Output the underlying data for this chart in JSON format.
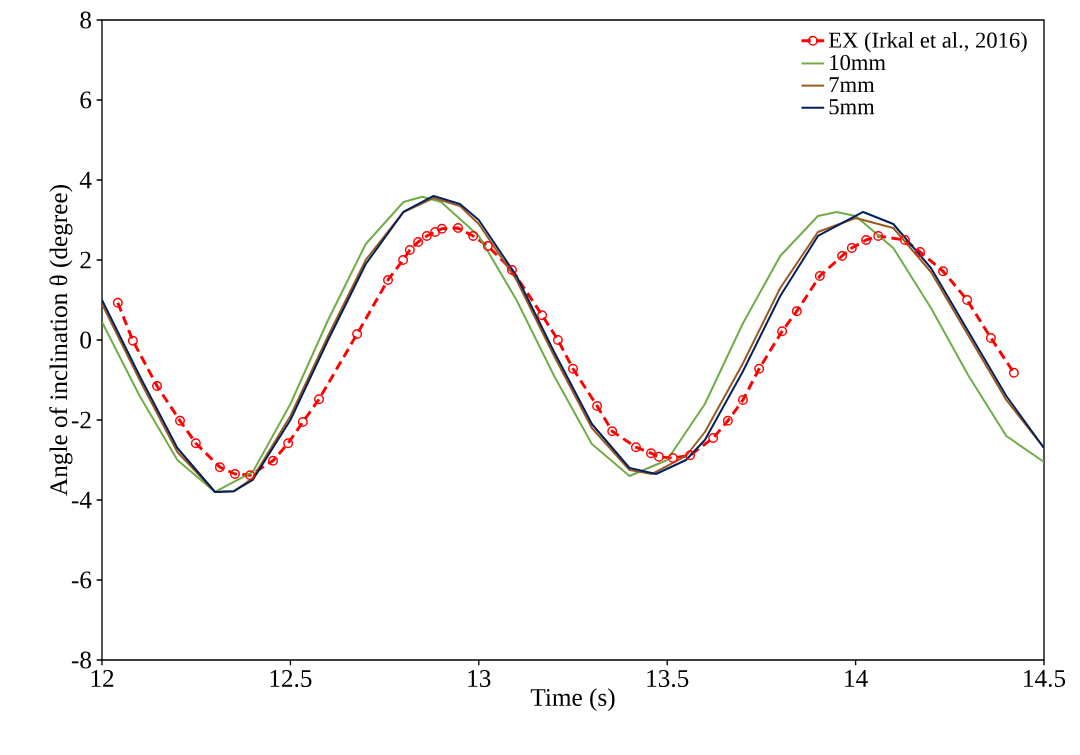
{
  "chart_data": {
    "type": "line",
    "xlabel": "Time (s)",
    "ylabel": "Angle of inclination θ (degree)",
    "xlim": [
      12,
      14.5
    ],
    "xticks": [
      12,
      12.5,
      13,
      13.5,
      14,
      14.5
    ],
    "ylim": [
      -8,
      8
    ],
    "yticks": [
      -8,
      -6,
      -4,
      -2,
      0,
      2,
      4,
      6,
      8
    ],
    "grid": false,
    "legend": "top right",
    "series": [
      {
        "name": "EX (Irkal et al., 2016)",
        "color": "#ff0000",
        "marker": "circle",
        "line_style": "dashed",
        "x": [
          12.042,
          12.082,
          12.146,
          12.207,
          12.249,
          12.313,
          12.353,
          12.393,
          12.454,
          12.494,
          12.533,
          12.576,
          12.677,
          12.759,
          12.799,
          12.817,
          12.839,
          12.862,
          12.884,
          12.902,
          12.945,
          12.985,
          13.024,
          13.088,
          13.168,
          13.21,
          13.25,
          13.314,
          13.354,
          13.417,
          13.457,
          13.478,
          13.515,
          13.561,
          13.622,
          13.661,
          13.701,
          13.744,
          13.805,
          13.844,
          13.905,
          13.964,
          13.99,
          14.028,
          14.06,
          14.131,
          14.171,
          14.232,
          14.296,
          14.359,
          14.42
        ],
        "values": [
          0.93,
          -0.02,
          -1.15,
          -2.02,
          -2.58,
          -3.18,
          -3.35,
          -3.38,
          -3.02,
          -2.58,
          -2.05,
          -1.48,
          0.15,
          1.5,
          2.0,
          2.25,
          2.45,
          2.6,
          2.7,
          2.78,
          2.8,
          2.6,
          2.35,
          1.75,
          0.62,
          0.0,
          -0.72,
          -1.65,
          -2.28,
          -2.68,
          -2.83,
          -2.92,
          -2.95,
          -2.88,
          -2.45,
          -2.02,
          -1.5,
          -0.72,
          0.22,
          0.72,
          1.6,
          2.1,
          2.3,
          2.5,
          2.6,
          2.5,
          2.2,
          1.72,
          1.0,
          0.05,
          -0.82
        ]
      },
      {
        "name": "10mm",
        "color": "#70ad47",
        "marker": "none",
        "line_style": "solid",
        "x": [
          12.0,
          12.1,
          12.2,
          12.3,
          12.4,
          12.5,
          12.6,
          12.7,
          12.8,
          12.85,
          12.9,
          13.0,
          13.1,
          13.2,
          13.3,
          13.4,
          13.5,
          13.6,
          13.7,
          13.8,
          13.9,
          13.95,
          14.0,
          14.1,
          14.2,
          14.3,
          14.4,
          14.5
        ],
        "values": [
          0.45,
          -1.4,
          -3.0,
          -3.8,
          -3.3,
          -1.6,
          0.5,
          2.4,
          3.45,
          3.58,
          3.45,
          2.6,
          1.0,
          -0.9,
          -2.6,
          -3.4,
          -3.0,
          -1.6,
          0.4,
          2.1,
          3.1,
          3.2,
          3.1,
          2.3,
          0.8,
          -0.9,
          -2.4,
          -3.05
        ]
      },
      {
        "name": "7mm",
        "color": "#9c5a1e",
        "marker": "none",
        "line_style": "solid",
        "x": [
          12.0,
          12.1,
          12.2,
          12.3,
          12.35,
          12.4,
          12.5,
          12.6,
          12.7,
          12.8,
          12.88,
          12.95,
          13.0,
          13.1,
          13.2,
          13.3,
          13.4,
          13.46,
          13.55,
          13.6,
          13.7,
          13.8,
          13.9,
          14.0,
          14.1,
          14.2,
          14.3,
          14.4,
          14.5
        ],
        "values": [
          0.9,
          -1.0,
          -2.8,
          -3.8,
          -3.78,
          -3.45,
          -1.9,
          0.1,
          2.0,
          3.2,
          3.55,
          3.35,
          2.9,
          1.5,
          -0.4,
          -2.2,
          -3.25,
          -3.35,
          -2.9,
          -2.3,
          -0.6,
          1.3,
          2.7,
          3.05,
          2.8,
          1.7,
          0.1,
          -1.5,
          -2.7
        ]
      },
      {
        "name": "5mm",
        "color": "#002060",
        "marker": "none",
        "line_style": "solid",
        "x": [
          12.0,
          12.1,
          12.2,
          12.3,
          12.35,
          12.4,
          12.5,
          12.6,
          12.7,
          12.8,
          12.88,
          12.95,
          13.0,
          13.1,
          13.2,
          13.3,
          13.4,
          13.47,
          13.55,
          13.6,
          13.7,
          13.8,
          13.9,
          14.02,
          14.1,
          14.2,
          14.3,
          14.4,
          14.5
        ],
        "values": [
          1.0,
          -0.9,
          -2.7,
          -3.8,
          -3.78,
          -3.5,
          -2.0,
          0.0,
          1.9,
          3.2,
          3.6,
          3.4,
          3.0,
          1.6,
          -0.3,
          -2.1,
          -3.2,
          -3.35,
          -3.0,
          -2.5,
          -0.8,
          1.1,
          2.6,
          3.2,
          2.9,
          1.8,
          0.2,
          -1.4,
          -2.7
        ]
      }
    ]
  }
}
